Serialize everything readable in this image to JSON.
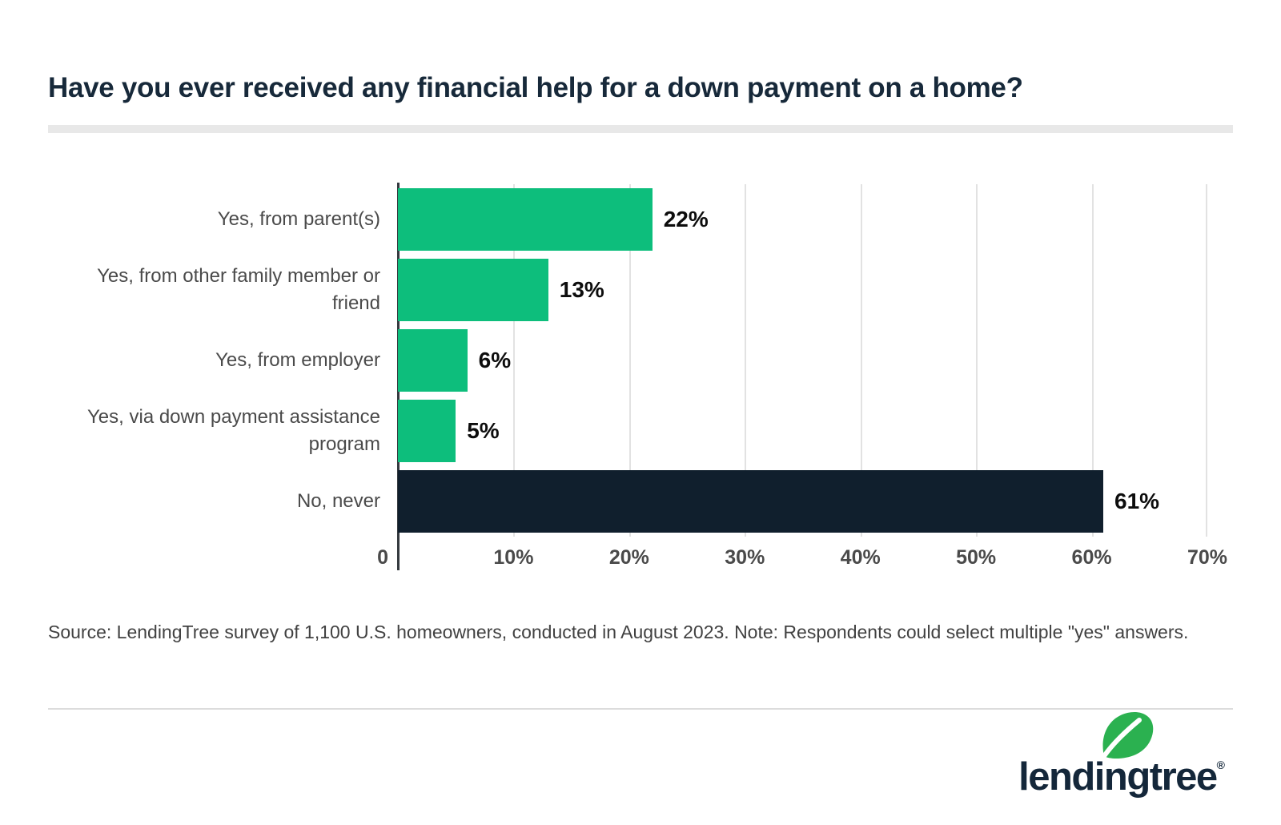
{
  "title": "Have you ever received any financial help for a down payment on a home?",
  "chart_data": {
    "type": "bar",
    "orientation": "horizontal",
    "title": "Have you ever received any financial help for a down payment on a home?",
    "categories": [
      "Yes, from parent(s)",
      "Yes, from other family member or friend",
      "Yes, from employer",
      "Yes, via down payment assistance program",
      "No, never"
    ],
    "values": [
      22,
      13,
      6,
      5,
      61
    ],
    "value_labels": [
      "22%",
      "13%",
      "6%",
      "5%",
      "61%"
    ],
    "xlim": [
      0,
      70
    ],
    "x_ticks": [
      "0",
      "10%",
      "20%",
      "30%",
      "40%",
      "50%",
      "60%",
      "70%"
    ],
    "grid": "vertical-gridlines",
    "legend": "none",
    "bar_colors": [
      "#0DBE7C",
      "#0DBE7C",
      "#0DBE7C",
      "#0DBE7C",
      "#101F2D"
    ]
  },
  "source_note": "Source: LendingTree survey of 1,100 U.S. homeowners, conducted in August 2023. Note: Respondents could select multiple \"yes\" answers.",
  "logo": {
    "text": "lendingtree",
    "registered": "®"
  },
  "colors": {
    "bar_green": "#0DBE7C",
    "bar_navy": "#101F2D",
    "title_navy": "#17293A",
    "category_label_gray": "#4A4A4A",
    "grid_gray": "#E2E2E2",
    "title_rule_gray": "#E8E8E8",
    "leaf_green": "#2BB150"
  }
}
